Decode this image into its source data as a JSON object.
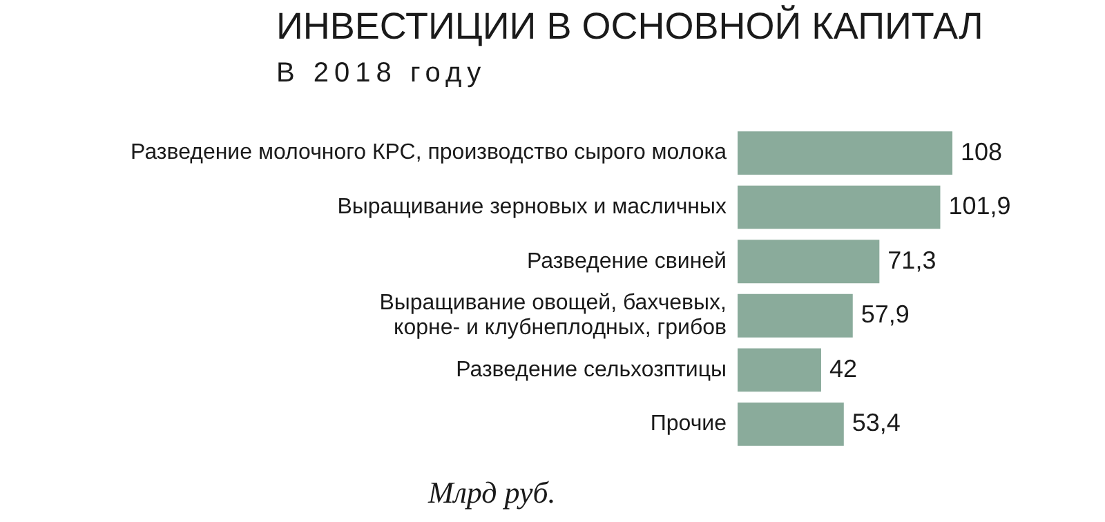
{
  "chart_data": {
    "type": "bar",
    "orientation": "horizontal",
    "title": "ИНВЕСТИЦИИ В ОСНОВНОЙ КАПИТАЛ",
    "subtitle": "В 2018 году",
    "categories": [
      "Разведение молочного КРС, производство сырого молока",
      "Выращивание зерновых и масличных",
      "Разведение свиней",
      "Выращивание овощей, бахчевых,\nкорне- и клубнеплодных, грибов",
      "Разведение сельхозптицы",
      "Прочие"
    ],
    "values": [
      108,
      101.9,
      71.3,
      57.9,
      42,
      53.4
    ],
    "value_labels": [
      "108",
      "101,9",
      "71,3",
      "57,9",
      "42",
      "53,4"
    ],
    "color": "#8aab9b",
    "xlabel": "Млрд руб.",
    "legend": false,
    "grid": false
  }
}
